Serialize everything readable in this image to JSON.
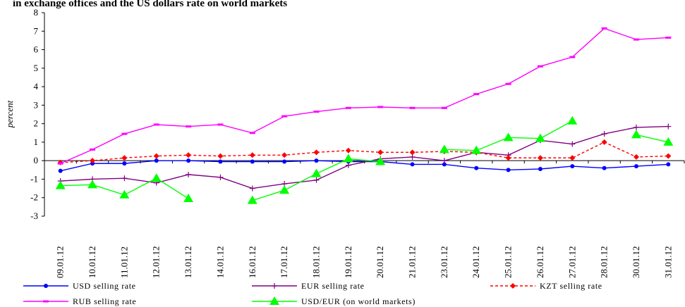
{
  "chart_data": {
    "type": "line",
    "title": "in exchange offices and the US dollars rate on world markets",
    "ylabel": "percent",
    "xlabel": "",
    "ylim": [
      -3,
      8
    ],
    "yticks": [
      8,
      7,
      6,
      5,
      4,
      3,
      2,
      1,
      0,
      -1,
      -2,
      -3
    ],
    "grid": false,
    "legend_position": "bottom",
    "categories": [
      "09.01.12",
      "10.01.12",
      "11.01.12",
      "12.01.12",
      "13.01.12",
      "14.01.12",
      "16.01.12",
      "17.01.12",
      "18.01.12",
      "19.01.12",
      "20.01.12",
      "21.01.12",
      "23.01.12",
      "24.01.12",
      "25.01.12",
      "26.01.12",
      "27.01.12",
      "28.01.12",
      "30.01.12",
      "31.01.12"
    ],
    "series": [
      {
        "name": "USD selling rate",
        "color": "#0000ff",
        "dash": "",
        "marker": "circle",
        "values": [
          -0.55,
          -0.15,
          -0.15,
          0.0,
          0.0,
          -0.05,
          -0.05,
          -0.05,
          0.0,
          -0.05,
          -0.05,
          -0.2,
          -0.2,
          -0.4,
          -0.5,
          -0.45,
          -0.3,
          -0.4,
          -0.3,
          -0.2
        ]
      },
      {
        "name": "EUR selling rate",
        "color": "#800080",
        "dash": "",
        "marker": "plus",
        "values": [
          -1.1,
          -1.0,
          -0.95,
          -1.2,
          -0.75,
          -0.9,
          -1.5,
          -1.25,
          -1.05,
          -0.25,
          0.1,
          0.2,
          0.0,
          0.45,
          0.3,
          1.1,
          0.9,
          1.45,
          1.8,
          1.85
        ]
      },
      {
        "name": "KZT selling rate",
        "color": "#ff0000",
        "dash": "4,3",
        "marker": "diamond",
        "values": [
          -0.1,
          0.0,
          0.15,
          0.25,
          0.3,
          0.25,
          0.3,
          0.3,
          0.45,
          0.55,
          0.45,
          0.45,
          0.5,
          0.45,
          0.15,
          0.15,
          0.15,
          1.0,
          0.2,
          0.25
        ]
      },
      {
        "name": "RUB selling rate",
        "color": "#ff00ff",
        "dash": "",
        "marker": "dash",
        "values": [
          -0.15,
          0.6,
          1.45,
          1.95,
          1.85,
          1.95,
          1.5,
          2.4,
          2.65,
          2.85,
          2.9,
          2.85,
          2.85,
          3.6,
          4.15,
          5.1,
          5.6,
          7.15,
          6.55,
          6.65
        ]
      },
      {
        "name": "USD/EUR (on world markets)",
        "color": "#00ff00",
        "dash": "",
        "marker": "triangle",
        "values": [
          -1.35,
          -1.3,
          -1.85,
          -0.95,
          -2.05,
          null,
          -2.15,
          -1.6,
          -0.7,
          0.1,
          -0.05,
          null,
          0.6,
          0.55,
          1.25,
          1.2,
          2.15,
          null,
          1.4,
          1.0
        ]
      }
    ]
  }
}
